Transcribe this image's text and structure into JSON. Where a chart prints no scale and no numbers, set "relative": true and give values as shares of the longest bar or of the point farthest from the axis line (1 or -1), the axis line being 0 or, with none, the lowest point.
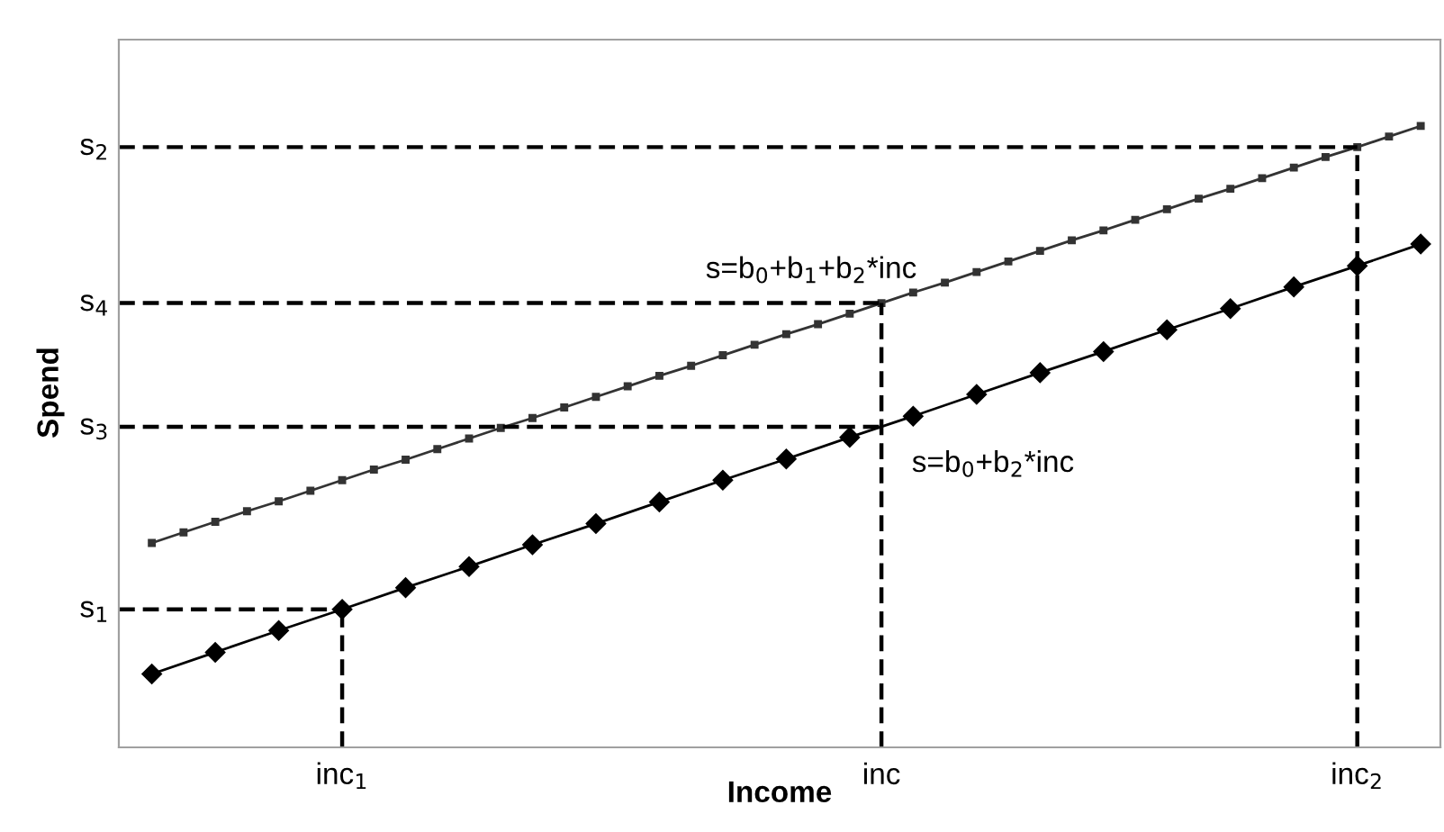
{
  "chart_data": {
    "type": "line",
    "xlabel": "Income",
    "ylabel": "Spend",
    "relative": true,
    "categories": [
      null,
      null,
      null,
      null,
      null,
      null,
      "inc$_{1}$",
      null,
      null,
      null,
      null,
      null,
      null,
      null,
      null,
      null,
      null,
      null,
      null,
      null,
      null,
      null,
      null,
      "inc",
      null,
      null,
      null,
      null,
      null,
      null,
      null,
      null,
      null,
      null,
      null,
      null,
      null,
      null,
      "inc$_{2}$",
      null,
      null
    ],
    "grid": false,
    "series": [
      {
        "color": "#000000",
        "marker": "diamond",
        "line_style": "solid",
        "values": [
          0.118,
          null,
          0.153,
          null,
          0.188,
          null,
          0.222,
          null,
          0.257,
          null,
          0.291,
          null,
          0.326,
          null,
          0.36,
          null,
          0.395,
          null,
          0.43,
          null,
          0.464,
          null,
          0.499,
          null,
          0.533,
          null,
          0.568,
          null,
          0.603,
          null,
          0.637,
          null,
          0.672,
          null,
          0.706,
          null,
          0.741,
          null,
          0.775,
          null,
          0.81
        ]
      },
      {
        "color": "#333333",
        "marker": "square",
        "line_style": "solid",
        "values": [
          0.329,
          0.346,
          0.363,
          0.38,
          0.396,
          0.413,
          0.43,
          0.447,
          0.463,
          0.48,
          0.497,
          0.514,
          0.53,
          0.547,
          0.564,
          0.581,
          0.598,
          0.614,
          0.631,
          0.648,
          0.665,
          0.681,
          0.698,
          0.715,
          0.732,
          0.748,
          0.765,
          0.782,
          0.799,
          0.816,
          0.832,
          0.849,
          0.866,
          0.883,
          0.899,
          0.916,
          0.933,
          0.95,
          0.966,
          0.983,
          1.0
        ]
      }
    ],
    "ref_lines": [
      {
        "axis": "y",
        "value": 0.222,
        "label": "s$_{1}$",
        "line_style": "dashed",
        "color": "#000000"
      },
      {
        "axis": "y",
        "value": 0.516,
        "label": "s$_{3}$",
        "line_style": "dashed",
        "color": "#000000"
      },
      {
        "axis": "y",
        "value": 0.715,
        "label": "s$_{4}$",
        "line_style": "dashed",
        "color": "#000000"
      },
      {
        "axis": "y",
        "value": 0.966,
        "label": "s$_{2}$",
        "line_style": "dashed",
        "color": "#000000"
      },
      {
        "axis": "x",
        "value": "inc$_{1}$",
        "line_style": "dashed",
        "color": "#000000"
      },
      {
        "axis": "x",
        "value": "inc",
        "line_style": "dashed",
        "color": "#000000"
      },
      {
        "axis": "x",
        "value": "inc$_{2}$",
        "line_style": "dashed",
        "color": "#000000"
      }
    ],
    "annotations": [
      "s=b$_{0}$+b$_{1}$+b$_{2}$*inc",
      "s=b$_{0}$+b$_{2}$*inc"
    ]
  }
}
